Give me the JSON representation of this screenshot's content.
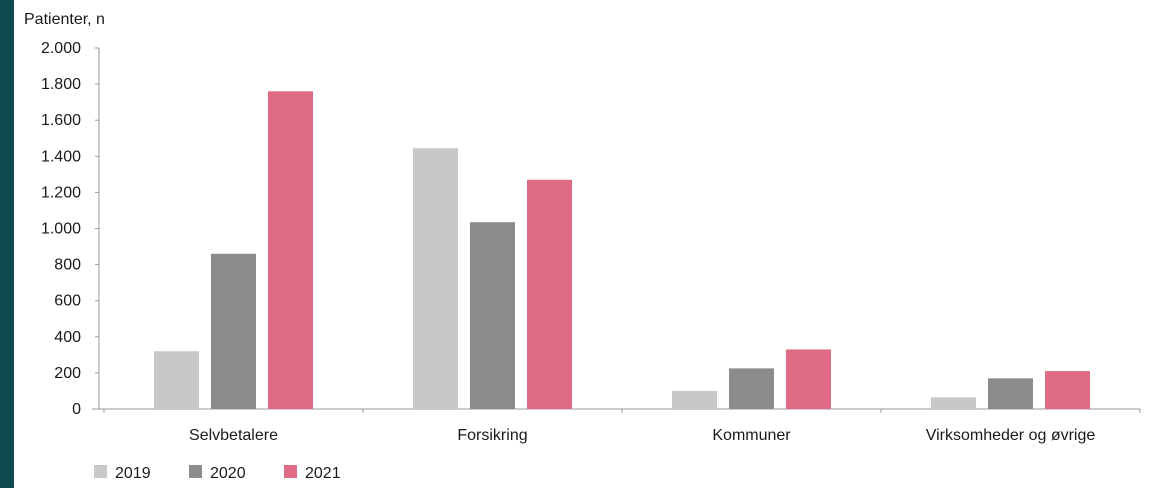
{
  "chart_data": {
    "type": "bar",
    "title": "",
    "xlabel": "",
    "ylabel": "Patienter, n",
    "ylim": [
      0,
      2000
    ],
    "yticks": [
      0,
      200,
      400,
      600,
      800,
      1000,
      1200,
      1400,
      1600,
      1800,
      2000
    ],
    "ytick_labels": [
      "0",
      "200",
      "400",
      "600",
      "800",
      "1.000",
      "1.200",
      "1.400",
      "1.600",
      "1.800",
      "2.000"
    ],
    "categories": [
      "Selvbetalere",
      "Forsikring",
      "Kommuner",
      "Virksomheder og øvrige"
    ],
    "series": [
      {
        "name": "2019",
        "color": "#c8c8c8",
        "values": [
          320,
          1445,
          100,
          65
        ]
      },
      {
        "name": "2020",
        "color": "#8c8c8c",
        "values": [
          860,
          1035,
          225,
          170
        ]
      },
      {
        "name": "2021",
        "color": "#df6b85",
        "values": [
          1760,
          1270,
          330,
          210
        ]
      }
    ],
    "grid": false,
    "legend_position": "bottom-left"
  }
}
